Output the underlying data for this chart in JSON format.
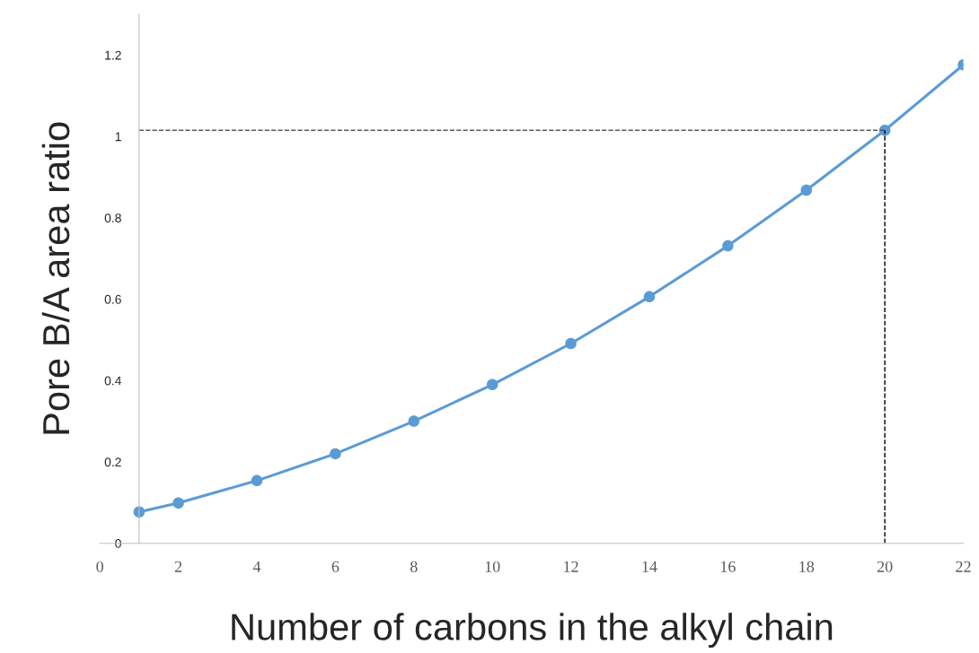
{
  "chart_data": {
    "type": "line",
    "xlabel": "Number of carbons in the alkyl chain",
    "ylabel": "Pore B/A area ratio",
    "x": [
      1,
      2,
      4,
      6,
      8,
      10,
      12,
      14,
      16,
      18,
      20,
      22
    ],
    "series": [
      {
        "color": "#5b9bd5",
        "values": [
          0.077,
          0.099,
          0.154,
          0.22,
          0.3,
          0.39,
          0.491,
          0.606,
          0.731,
          0.868,
          1.015,
          1.176
        ]
      }
    ],
    "xlim": [
      0,
      22
    ],
    "xticks": [
      0,
      2,
      4,
      6,
      8,
      10,
      12,
      14,
      16,
      18,
      20,
      22
    ],
    "ylim": [
      0,
      1.3
    ],
    "yticks": [
      0,
      0.2,
      0.4,
      0.6,
      0.8,
      1,
      1.2
    ],
    "ref_lines": [
      {
        "axis": "y",
        "value": 1.015,
        "color": "#595959",
        "line_style": "dashed"
      },
      {
        "axis": "x",
        "value": 20,
        "color": "#000000",
        "line_style": "dashed"
      }
    ],
    "marker": "circle",
    "line_style": "solid"
  }
}
